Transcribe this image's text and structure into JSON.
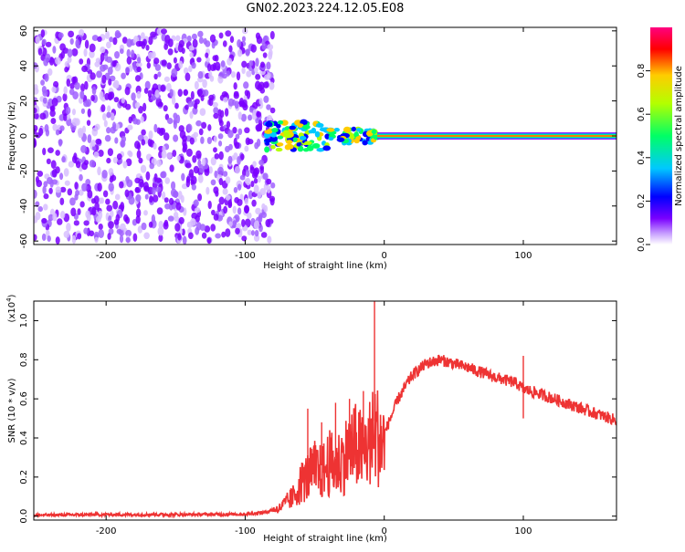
{
  "title": "GN02.2023.224.12.05.E08",
  "chart_data": [
    {
      "type": "heatmap",
      "xlabel": "Height of straight line (km)",
      "ylabel": "Frequency (Hz)",
      "xlim": [
        -252,
        167
      ],
      "ylim": [
        -62,
        62
      ],
      "x_ticks": [
        -200,
        -100,
        0,
        100
      ],
      "y_ticks": [
        -60,
        -40,
        -20,
        0,
        20,
        40,
        60
      ],
      "colorbar": {
        "label": "Normalized spectral amplitude",
        "range": [
          0.0,
          1.0
        ],
        "ticks": [
          "0.0",
          "0.2",
          "0.4",
          "0.6",
          "0.8"
        ],
        "colors": [
          "#ffffff",
          "#7a00ff",
          "#0000ff",
          "#00c8ff",
          "#00ff66",
          "#b4ff00",
          "#ffcc00",
          "#ff0000",
          "#ff0080"
        ]
      },
      "regions": [
        {
          "x": [
            -252,
            -80
          ],
          "frequency": [
            -60,
            60
          ],
          "amplitude_range": [
            0.05,
            0.2
          ]
        },
        {
          "x": [
            -85,
            -5
          ],
          "frequency": [
            -8,
            8
          ],
          "amplitude_range": [
            0.3,
            0.9
          ]
        },
        {
          "x": [
            -5,
            167
          ],
          "frequency": [
            -2,
            2
          ],
          "amplitude_range": [
            0.85,
            1.0
          ]
        }
      ]
    },
    {
      "type": "line",
      "xlabel": "Height of straight line (km)",
      "ylabel": "SNR (10 * v/v)",
      "y_multiplier": "(x10",
      "y_multiplier_exp": "4",
      "y_multiplier_close": ")",
      "xlim": [
        -252,
        167
      ],
      "ylim": [
        -0.02,
        1.1
      ],
      "x_ticks": [
        -200,
        -100,
        0,
        100
      ],
      "y_ticks": [
        "0.0",
        "0.2",
        "0.4",
        "0.6",
        "0.8",
        "1.0"
      ],
      "color": "#ee3333",
      "series_envelope": {
        "x": [
          -252,
          -200,
          -150,
          -100,
          -85,
          -75,
          -65,
          -60,
          -55,
          -50,
          -45,
          -40,
          -35,
          -30,
          -25,
          -20,
          -15,
          -10,
          -6,
          0,
          10,
          20,
          30,
          40,
          50,
          60,
          80,
          95,
          100,
          110,
          130,
          150,
          167
        ],
        "y": [
          0.005,
          0.008,
          0.008,
          0.01,
          0.02,
          0.05,
          0.12,
          0.2,
          0.24,
          0.28,
          0.26,
          0.32,
          0.3,
          0.34,
          0.4,
          0.42,
          0.38,
          0.45,
          0.5,
          0.42,
          0.6,
          0.72,
          0.78,
          0.8,
          0.78,
          0.76,
          0.71,
          0.68,
          0.65,
          0.63,
          0.58,
          0.53,
          0.49
        ]
      },
      "spikes": [
        {
          "x": -55,
          "y": 0.55
        },
        {
          "x": -45,
          "y": 0.48
        },
        {
          "x": -35,
          "y": 0.58
        },
        {
          "x": -25,
          "y": 0.6
        },
        {
          "x": -15,
          "y": 0.64
        },
        {
          "x": -7,
          "y": 1.1
        },
        {
          "x": 100,
          "y": 0.82
        },
        {
          "x": 100,
          "y": 0.5
        }
      ]
    }
  ]
}
